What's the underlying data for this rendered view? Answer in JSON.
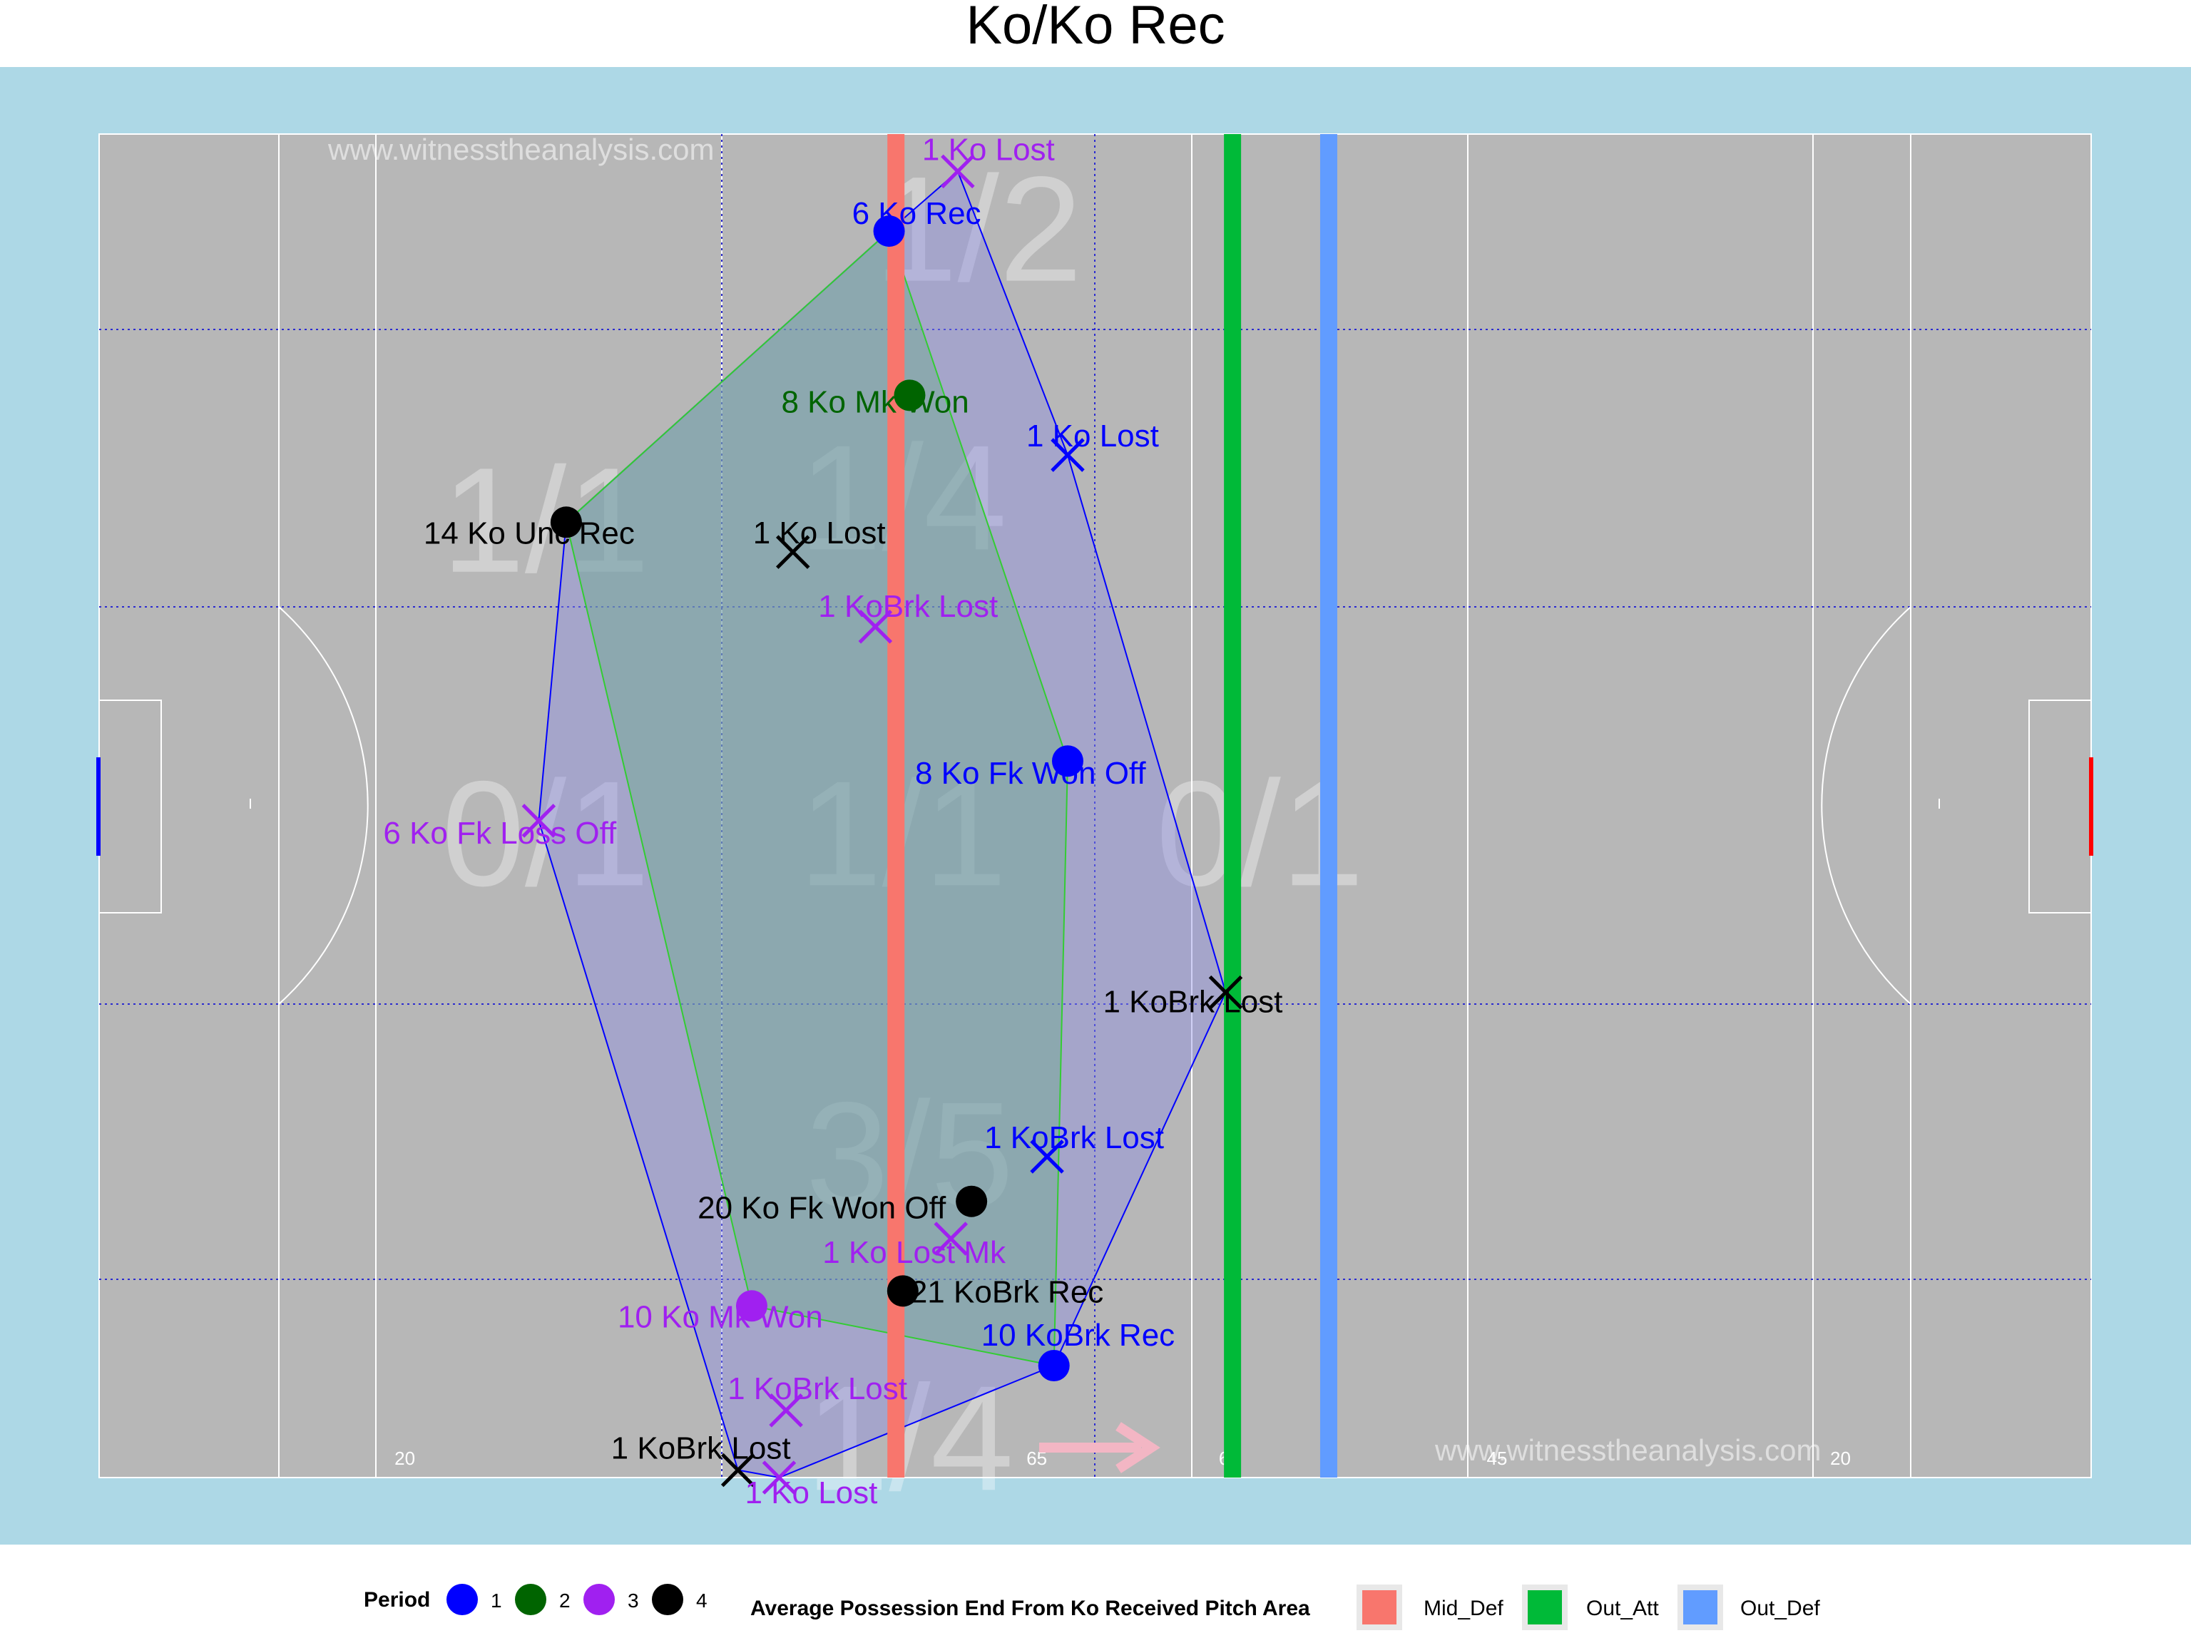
{
  "title": "Ko/Ko Rec",
  "watermark": "www.witnesstheanalysis.com",
  "colors": {
    "background": "#add8e6",
    "pitch": "#b7b7b7",
    "period": {
      "1": "#0000ff",
      "2": "#006400",
      "3": "#a020f0",
      "4": "#000000"
    },
    "hull_period_1_3": "#0000ff",
    "hull_period_2_4": "#33cc33",
    "Mid_Def": "#f8766d",
    "Out_Att": "#00ba38",
    "Out_Def": "#619cff"
  },
  "legend": {
    "period_title": "Period",
    "period_labels": [
      "1",
      "2",
      "3",
      "4"
    ],
    "avg_title": "Average Possession End From Ko Received Pitch Area",
    "avg_labels": [
      "Mid_Def",
      "Out_Att",
      "Out_Def"
    ]
  },
  "chart_data": {
    "type": "scatter",
    "title": "Ko/Ko Rec",
    "xlim": [
      0,
      145
    ],
    "ylim": [
      0,
      90
    ],
    "grid": false,
    "legend_position": "bottom",
    "pitch_distance_labels": [
      {
        "x": 21.5,
        "text": "20"
      },
      {
        "x": 67.5,
        "text": "65"
      },
      {
        "x": 81.5,
        "text": "65"
      },
      {
        "x": 101,
        "text": "45"
      },
      {
        "x": 126,
        "text": "20"
      }
    ],
    "zone_ratios": [
      {
        "x": 64,
        "y": 84,
        "text": "1/2"
      },
      {
        "x": 32.5,
        "y": 64.5,
        "text": "1/1"
      },
      {
        "x": 58.5,
        "y": 66,
        "text": "1/4"
      },
      {
        "x": 32.5,
        "y": 43.5,
        "text": "0/1"
      },
      {
        "x": 58.5,
        "y": 43.5,
        "text": "1/1"
      },
      {
        "x": 84.5,
        "y": 43.5,
        "text": "0/1"
      },
      {
        "x": 59,
        "y": 22,
        "text": "3/5"
      },
      {
        "x": 59,
        "y": 3,
        "text": "1/4"
      }
    ],
    "avg_possession_end_lines": [
      {
        "name": "Mid_Def",
        "x": 58
      },
      {
        "name": "Out_Att",
        "x": 82.5
      },
      {
        "name": "Out_Def",
        "x": 89.5
      }
    ],
    "points": [
      {
        "x": 62.5,
        "y": 87.5,
        "period": 3,
        "marker": "x",
        "label": "1 Ko Lost"
      },
      {
        "x": 57.5,
        "y": 83.5,
        "period": 1,
        "marker": "dot",
        "label": "6 Ko Rec"
      },
      {
        "x": 59,
        "y": 72.5,
        "period": 2,
        "marker": "dot",
        "label": "8 Ko Mk Won"
      },
      {
        "x": 70.5,
        "y": 68.5,
        "period": 1,
        "marker": "x",
        "label": "1 Ko Lost"
      },
      {
        "x": 34,
        "y": 64,
        "period": 4,
        "marker": "dot",
        "label": "14 Ko Unc Rec"
      },
      {
        "x": 50.5,
        "y": 62,
        "period": 4,
        "marker": "x",
        "label": "1 Ko Lost"
      },
      {
        "x": 56.5,
        "y": 57,
        "period": 3,
        "marker": "x",
        "label": "1 KoBrk Lost"
      },
      {
        "x": 70.5,
        "y": 48,
        "period": 1,
        "marker": "dot",
        "label": "8 Ko Fk Won Off"
      },
      {
        "x": 32,
        "y": 44,
        "period": 3,
        "marker": "x",
        "label": "6 Ko Fk Loss Off"
      },
      {
        "x": 82,
        "y": 32.5,
        "period": 4,
        "marker": "x",
        "label": "1 KoBrk Lost"
      },
      {
        "x": 69,
        "y": 21.5,
        "period": 1,
        "marker": "x",
        "label": "1 KoBrk Lost"
      },
      {
        "x": 63.5,
        "y": 18.5,
        "period": 4,
        "marker": "dot",
        "label": "20 Ko Fk Won Off"
      },
      {
        "x": 62,
        "y": 16,
        "period": 3,
        "marker": "x",
        "label": "1 Ko Lost Mk"
      },
      {
        "x": 58.5,
        "y": 12.5,
        "period": 4,
        "marker": "dot",
        "label": "21 KoBrk Rec"
      },
      {
        "x": 47.5,
        "y": 11.5,
        "period": 3,
        "marker": "dot",
        "label": "10 Ko Mk Won"
      },
      {
        "x": 69.5,
        "y": 7.5,
        "period": 1,
        "marker": "dot",
        "label": "10 KoBrk Rec"
      },
      {
        "x": 50,
        "y": 4.5,
        "period": 3,
        "marker": "x",
        "label": "1 KoBrk Lost"
      },
      {
        "x": 46.5,
        "y": 0.5,
        "period": 4,
        "marker": "x",
        "label": "1 KoBrk Lost"
      },
      {
        "x": 49.5,
        "y": 0,
        "period": 3,
        "marker": "x",
        "label": "1 Ko Lost"
      }
    ]
  }
}
